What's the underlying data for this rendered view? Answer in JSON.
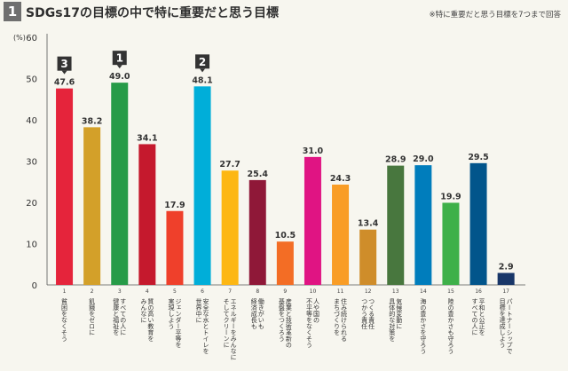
{
  "header": {
    "number": "1",
    "title": "SDGs17の目標の中で特に重要だと思う目標",
    "note": "※特に重要だと思う目標を7つまで回答"
  },
  "chart_data": {
    "type": "bar",
    "title": "SDGs17の目標の中で特に重要だと思う目標",
    "ylabel": "(%)",
    "ylim": [
      0,
      60
    ],
    "yticks": [
      0,
      10,
      20,
      30,
      40,
      50,
      60
    ],
    "grid": false,
    "categories": [
      "1",
      "2",
      "3",
      "4",
      "5",
      "6",
      "7",
      "8",
      "9",
      "10",
      "11",
      "12",
      "13",
      "14",
      "15",
      "16",
      "17"
    ],
    "category_labels": [
      [
        "貧困をなくそう"
      ],
      [
        "飢餓をゼロに"
      ],
      [
        "すべての人に",
        "健康と福祉を"
      ],
      [
        "質の高い教育を",
        "みんなに"
      ],
      [
        "ジェンダー平等を",
        "実現しよう"
      ],
      [
        "安全な水とトイレを",
        "世界中に"
      ],
      [
        "エネルギーをみんなに",
        "そしてクリーンに"
      ],
      [
        "働きがいも",
        "経済成長も"
      ],
      [
        "産業と技術革新の",
        "基盤をつくろう"
      ],
      [
        "人や国の",
        "不平等をなくそう"
      ],
      [
        "住み続けられる",
        "まちづくりを"
      ],
      [
        "つくる責任",
        "つかう責任"
      ],
      [
        "気候変動に",
        "具体的な対策を"
      ],
      [
        "海の豊かさを守ろう"
      ],
      [
        "陸の豊かさも守ろう"
      ],
      [
        "平和と公正を",
        "すべての人に"
      ],
      [
        "パートナーシップで",
        "目標を達成しよう"
      ]
    ],
    "values": [
      47.6,
      38.2,
      49.0,
      34.1,
      17.9,
      48.1,
      27.7,
      25.4,
      10.5,
      31.0,
      24.3,
      13.4,
      28.9,
      29.0,
      19.9,
      29.5,
      2.9
    ],
    "value_labels": [
      "47.6",
      "38.2",
      "49.0",
      "34.1",
      "17.9",
      "48.1",
      "27.7",
      "25.4",
      "10.5",
      "31.0",
      "24.3",
      "13.4",
      "28.9",
      "29.0",
      "19.9",
      "29.5",
      "2.9"
    ],
    "colors": [
      "#e5243b",
      "#d3a029",
      "#279b48",
      "#c5192d",
      "#ef402b",
      "#00aed9",
      "#fdb713",
      "#8f1838",
      "#f36d25",
      "#e01483",
      "#f99d26",
      "#cf8d2a",
      "#48773e",
      "#007dbc",
      "#3eb049",
      "#02558b",
      "#183668"
    ],
    "rank_badges": [
      {
        "category": "1",
        "rank": "3"
      },
      {
        "category": "3",
        "rank": "1"
      },
      {
        "category": "6",
        "rank": "2"
      }
    ]
  }
}
